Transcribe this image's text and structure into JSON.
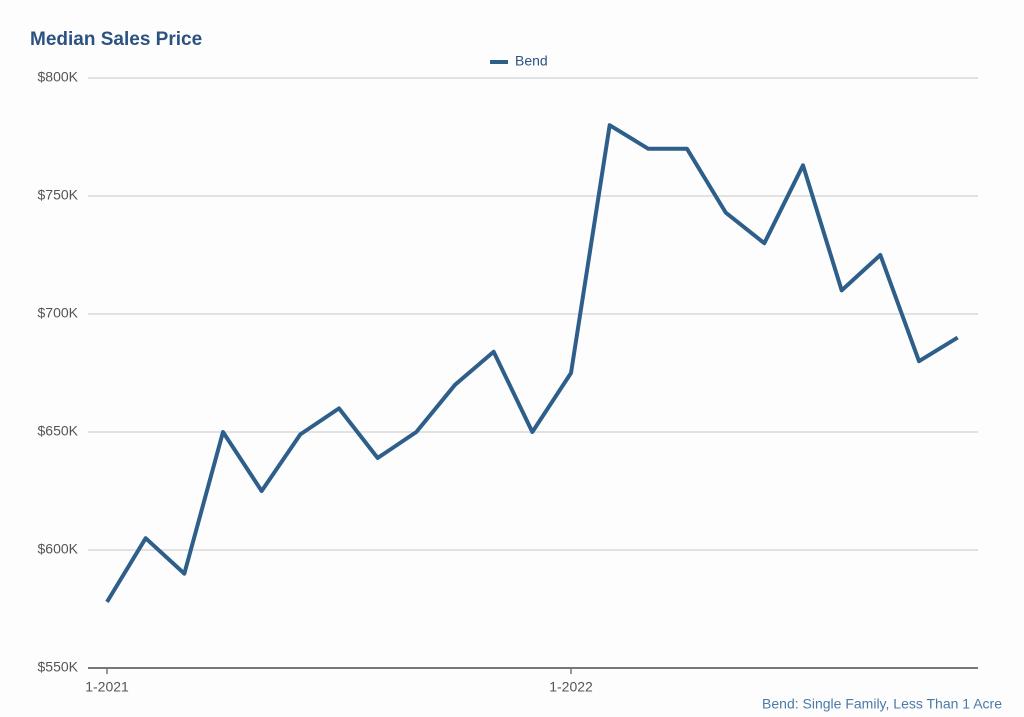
{
  "chart_data": {
    "type": "line",
    "title": "Median Sales Price",
    "categories": [
      "1-2021",
      null,
      null,
      null,
      null,
      null,
      null,
      null,
      null,
      null,
      null,
      null,
      "1-2022",
      null,
      null,
      null,
      null,
      null,
      null,
      null,
      null,
      null,
      null
    ],
    "series": [
      {
        "name": "Bend",
        "color": "#2e5f8a",
        "values": [
          578000,
          605000,
          590000,
          650000,
          625000,
          649000,
          660000,
          639000,
          650000,
          670000,
          684000,
          650000,
          675000,
          780000,
          770000,
          770000,
          743000,
          730000,
          763000,
          710000,
          725000,
          680000,
          690000
        ]
      }
    ],
    "ylim": [
      550000,
      800000
    ],
    "yticks": [
      {
        "value": 550000,
        "label": "$550K"
      },
      {
        "value": 600000,
        "label": "$600K"
      },
      {
        "value": 650000,
        "label": "$650K"
      },
      {
        "value": 700000,
        "label": "$700K"
      },
      {
        "value": 750000,
        "label": "$750K"
      },
      {
        "value": 800000,
        "label": "$800K"
      }
    ],
    "grid": true,
    "legend": "top",
    "footnote": "Bend: Single Family, Less Than 1 Acre"
  }
}
